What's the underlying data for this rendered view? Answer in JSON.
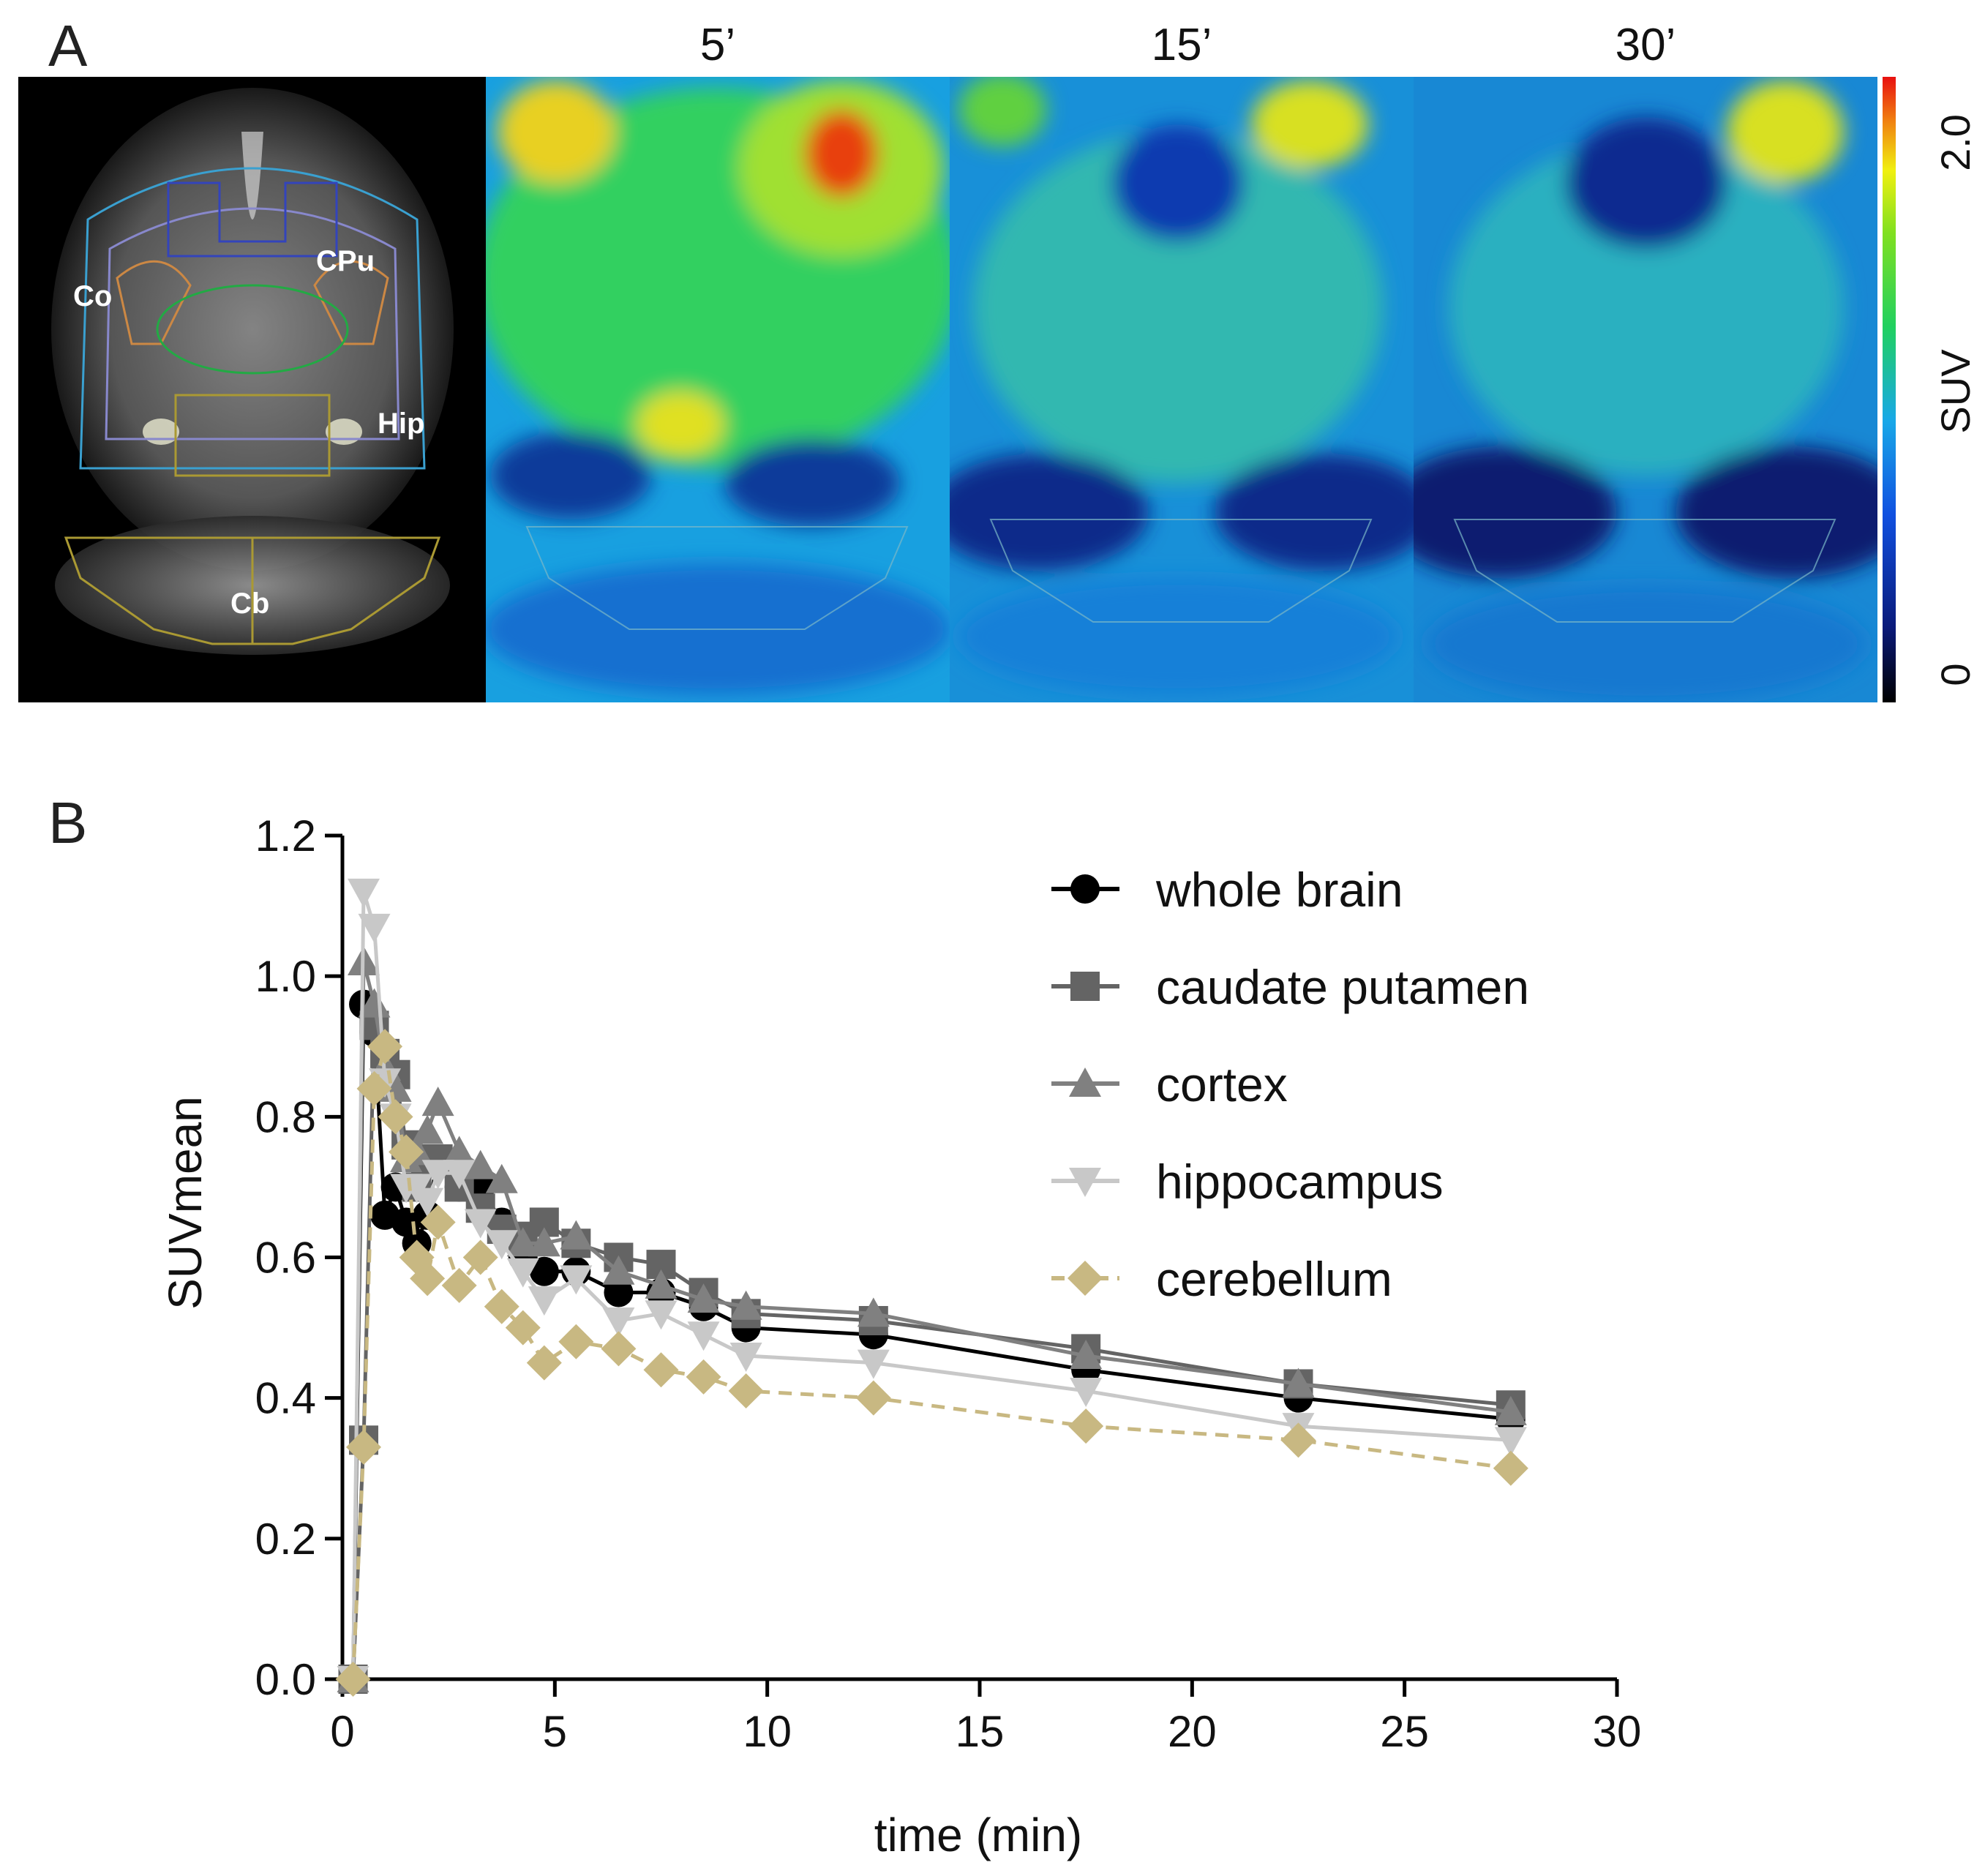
{
  "panel_a": {
    "label": "A",
    "anatomy_labels": [
      "Co",
      "CPu",
      "Hip",
      "Cb"
    ],
    "time_labels": [
      "5’",
      "15’",
      "30’"
    ],
    "colorbar": {
      "title": "SUV",
      "max_label": "2.0",
      "min_label": "0"
    },
    "colors": {
      "background": "#000000",
      "hot": "#e01010",
      "mid": "#1ec83c",
      "cool": "#1a78d8",
      "cold": "#0a1e6e"
    }
  },
  "panel_b": {
    "label": "B"
  },
  "chart_data": {
    "type": "line",
    "title": "",
    "xlabel": "time (min)",
    "ylabel": "SUVmean",
    "xlim": [
      0,
      30
    ],
    "ylim": [
      0,
      1.2
    ],
    "xticks": [
      "0",
      "5",
      "10",
      "15",
      "20",
      "25",
      "30"
    ],
    "yticks": [
      "0.0",
      "0.2",
      "0.4",
      "0.6",
      "0.8",
      "1.0",
      "1.2"
    ],
    "legend_position": "top-right",
    "x": [
      0.25,
      0.5,
      0.75,
      1.0,
      1.25,
      1.5,
      1.75,
      2.0,
      2.25,
      2.75,
      3.25,
      3.75,
      4.25,
      4.75,
      5.5,
      6.5,
      7.5,
      8.5,
      9.5,
      12.5,
      17.5,
      22.5,
      27.5
    ],
    "series": [
      {
        "name": "whole brain",
        "marker": "circle",
        "color": "#000000",
        "dash": false,
        "values": [
          0.0,
          0.96,
          0.92,
          0.66,
          0.7,
          0.65,
          0.62,
          0.66,
          0.74,
          0.7,
          0.7,
          0.65,
          0.6,
          0.58,
          0.58,
          0.55,
          0.55,
          0.53,
          0.5,
          0.49,
          0.44,
          0.4,
          0.37
        ]
      },
      {
        "name": "caudate putamen",
        "marker": "square",
        "color": "#646464",
        "dash": false,
        "values": [
          0.0,
          0.34,
          0.93,
          0.89,
          0.86,
          0.76,
          0.7,
          0.74,
          0.74,
          0.7,
          0.67,
          0.64,
          0.63,
          0.65,
          0.62,
          0.6,
          0.59,
          0.55,
          0.52,
          0.51,
          0.47,
          0.42,
          0.39
        ]
      },
      {
        "name": "cortex",
        "marker": "triangle-up",
        "color": "#808080",
        "dash": false,
        "values": [
          0.0,
          1.02,
          0.96,
          0.87,
          0.84,
          0.74,
          0.75,
          0.78,
          0.82,
          0.75,
          0.73,
          0.71,
          0.62,
          0.62,
          0.63,
          0.58,
          0.56,
          0.54,
          0.53,
          0.52,
          0.46,
          0.42,
          0.38
        ]
      },
      {
        "name": "hippocampus",
        "marker": "triangle-down",
        "color": "#c8c8c8",
        "dash": false,
        "values": [
          0.0,
          1.12,
          1.07,
          0.85,
          0.8,
          0.7,
          0.7,
          0.68,
          0.72,
          0.72,
          0.65,
          0.62,
          0.58,
          0.54,
          0.57,
          0.51,
          0.52,
          0.49,
          0.46,
          0.45,
          0.41,
          0.36,
          0.34
        ]
      },
      {
        "name": "cerebellum",
        "marker": "diamond",
        "color": "#c8b882",
        "dash": true,
        "values": [
          0.0,
          0.33,
          0.84,
          0.9,
          0.8,
          0.75,
          0.6,
          0.57,
          0.65,
          0.56,
          0.6,
          0.53,
          0.5,
          0.45,
          0.48,
          0.47,
          0.44,
          0.43,
          0.41,
          0.4,
          0.36,
          0.34,
          0.3
        ]
      }
    ]
  }
}
